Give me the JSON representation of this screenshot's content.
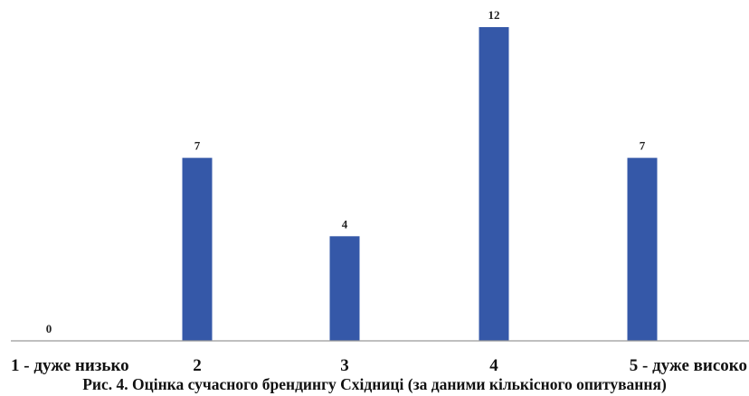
{
  "chart_data": {
    "type": "bar",
    "categories": [
      "1 - дуже низько",
      "2",
      "3",
      "4",
      "5 - дуже високо"
    ],
    "values": [
      0,
      7,
      4,
      12,
      7
    ],
    "title": "",
    "xlabel": "",
    "ylabel": "",
    "ylim": [
      0,
      12
    ],
    "grid": false,
    "legend": "none",
    "bar_color": "#3558a8",
    "axis_color": "#999999",
    "caption": "Рис. 4. Оцінка сучасного брендингу Східниці (за даними кількісного опитування)"
  }
}
